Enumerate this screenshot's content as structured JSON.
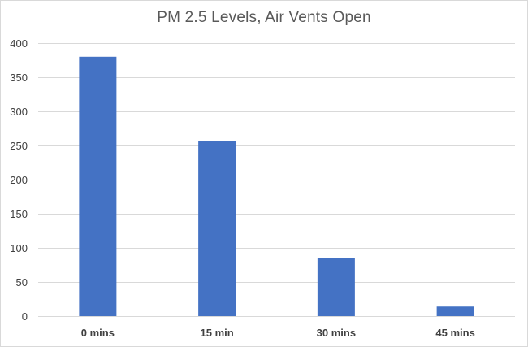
{
  "chart_data": {
    "type": "bar",
    "title": "PM 2.5 Levels, Air Vents Open",
    "xlabel": "",
    "ylabel": "",
    "categories": [
      "0 mins",
      "15 min",
      "30 mins",
      "45 mins"
    ],
    "values": [
      380,
      256,
      85,
      14
    ],
    "ylim": [
      0,
      400
    ],
    "yticks": [
      0,
      50,
      100,
      150,
      200,
      250,
      300,
      350,
      400
    ],
    "grid": true,
    "legend": "none",
    "bar_color": "#4472c4",
    "grid_color": "#d9d9d9"
  }
}
